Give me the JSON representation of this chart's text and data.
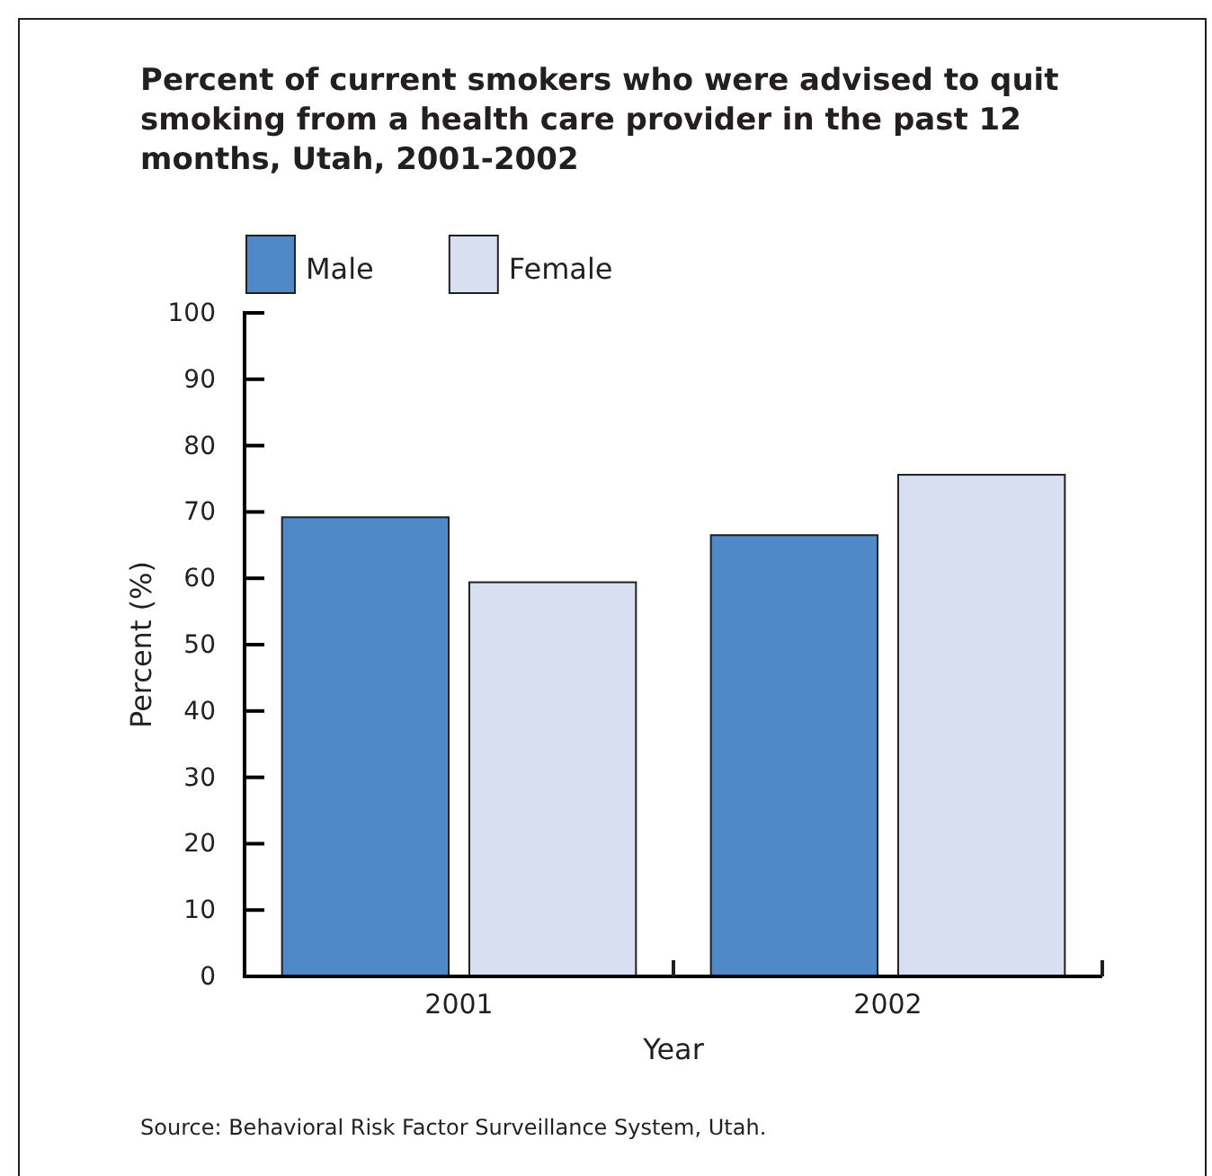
{
  "chart_data": {
    "type": "bar",
    "title": "Percent of current smokers who were advised to quit smoking from a health care provider in the past 12 months, Utah, 2001-2002",
    "xlabel": "Year",
    "ylabel": "Percent (%)",
    "categories": [
      "2001",
      "2002"
    ],
    "series": [
      {
        "name": "Male",
        "color": "#4f89c8",
        "values": [
          69.2,
          66.5
        ]
      },
      {
        "name": "Female",
        "color": "#d7dff1",
        "values": [
          59.4,
          75.6
        ]
      }
    ],
    "ylim": [
      0,
      100
    ],
    "yticks": [
      0,
      10,
      20,
      30,
      40,
      50,
      60,
      70,
      80,
      90,
      100
    ],
    "grid": false,
    "legend": "top left",
    "annotations": [
      "Source: Behavioral Risk Factor Surveillance System, Utah."
    ]
  }
}
